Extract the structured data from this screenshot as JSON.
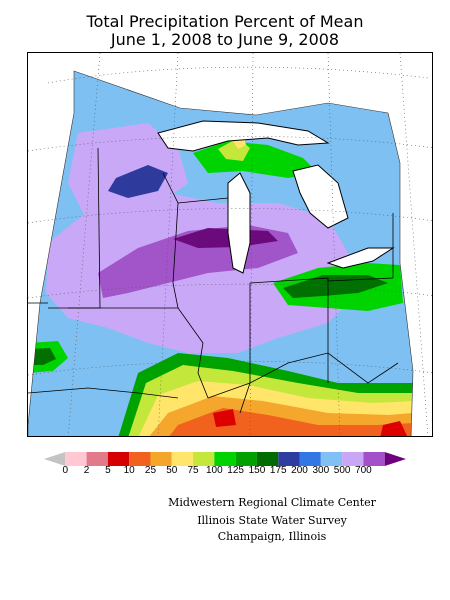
{
  "title": {
    "line1": "Total Precipitation Percent of Mean",
    "line2": "June 1, 2008 to June 9, 2008"
  },
  "legend": {
    "labels": [
      "0",
      "2",
      "5",
      "10",
      "25",
      "50",
      "75",
      "100",
      "125",
      "150",
      "175",
      "200",
      "300",
      "500",
      "700"
    ],
    "colors": [
      "#c4c4c4",
      "#ffc8d2",
      "#e27b89",
      "#d70000",
      "#f0621e",
      "#f3a62a",
      "#ffe56b",
      "#c4e73c",
      "#00d300",
      "#00a000",
      "#006b00",
      "#2f3da0",
      "#3277e6",
      "#80c0f5",
      "#c8a8f5",
      "#a450c8",
      "#6e007d"
    ]
  },
  "map": {
    "colors": {
      "background": "#7ec0f2",
      "mid_blue": "#3478e6",
      "dark_blue": "#2e3a9c",
      "lavender": "#c8a8f7",
      "purple": "#a155c8",
      "dark_purple": "#6b0a7a",
      "lime": "#c4e73c",
      "yellow": "#ffe66b",
      "orange": "#f5a62c",
      "red_orange": "#f0621e",
      "red": "#dd0000",
      "green": "#00d400",
      "mid_green": "#00a200",
      "dark_green": "#007000",
      "no_data": "#ffffff"
    }
  },
  "credits": {
    "line1": "Midwestern Regional Climate Center",
    "line2": "Illinois State Water Survey",
    "line3": "Champaign, Illinois"
  }
}
